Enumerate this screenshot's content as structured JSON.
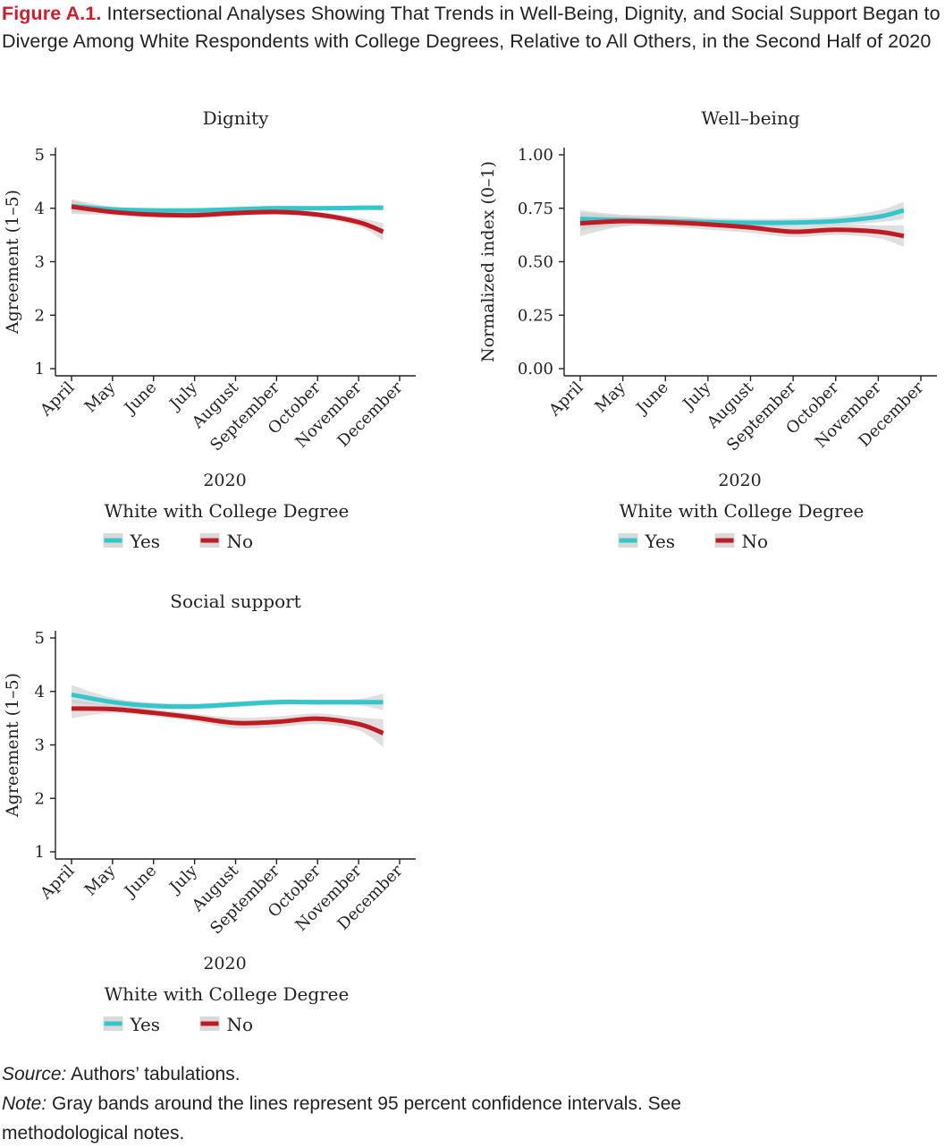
{
  "figure": {
    "label": "Figure A.1.",
    "title": "Intersectional Analyses Showing That Trends in Well-Being, Dignity, and Social Support Began to Diverge Among White Respondents with College Degrees, Relative to All Others, in the Second Half of 2020"
  },
  "source": {
    "label": "Source:",
    "text": "Authors’ tabulations."
  },
  "note": {
    "label": "Note:",
    "text": "Gray bands around the lines represent 95 percent confidence intervals. See methodological notes."
  },
  "colors": {
    "yes": "#35c6cc",
    "no": "#c01b22",
    "band": "#c9c9c9",
    "axis": "#231f20"
  },
  "chart_data": [
    {
      "id": "dignity",
      "type": "line",
      "title": "Dignity",
      "xlabel": "2020",
      "ylabel": "Agreement (1–5)",
      "categories": [
        "April",
        "May",
        "June",
        "July",
        "August",
        "September",
        "October",
        "November",
        "December"
      ],
      "ylim": [
        1,
        5
      ],
      "yticks": [
        1,
        2,
        3,
        4,
        5
      ],
      "ytick_labels": [
        "1",
        "2",
        "3",
        "4",
        "5"
      ],
      "grid": false,
      "legend": {
        "title": "White with College Degree",
        "position": "bottom",
        "items": [
          "Yes",
          "No"
        ]
      },
      "series": [
        {
          "name": "Yes",
          "color": "#35c6cc",
          "x": [
            0,
            1,
            2,
            3,
            4,
            5,
            6,
            7,
            7.6
          ],
          "values": [
            4.04,
            3.98,
            3.96,
            3.96,
            3.98,
            4.0,
            4.0,
            4.01,
            4.01
          ],
          "ci_lower": [
            3.92,
            3.93,
            3.92,
            3.92,
            3.94,
            3.96,
            3.96,
            3.97,
            3.96
          ],
          "ci_upper": [
            4.17,
            4.03,
            4.0,
            4.0,
            4.02,
            4.05,
            4.04,
            4.05,
            4.06
          ]
        },
        {
          "name": "No",
          "color": "#c01b22",
          "x": [
            0,
            1,
            2,
            3,
            4,
            5,
            6,
            7,
            7.6
          ],
          "values": [
            4.03,
            3.93,
            3.88,
            3.87,
            3.91,
            3.93,
            3.88,
            3.74,
            3.56
          ],
          "ci_lower": [
            3.89,
            3.87,
            3.83,
            3.82,
            3.86,
            3.88,
            3.83,
            3.66,
            3.4
          ],
          "ci_upper": [
            4.15,
            3.99,
            3.93,
            3.92,
            3.96,
            3.98,
            3.93,
            3.82,
            3.72
          ]
        }
      ]
    },
    {
      "id": "wellbeing",
      "type": "line",
      "title": "Well–being",
      "xlabel": "2020",
      "ylabel": "Normalized index (0–1)",
      "categories": [
        "April",
        "May",
        "June",
        "July",
        "August",
        "September",
        "October",
        "November",
        "December"
      ],
      "ylim": [
        0,
        1
      ],
      "yticks": [
        0,
        0.25,
        0.5,
        0.75,
        1
      ],
      "ytick_labels": [
        "0.00",
        "0.25",
        "0.50",
        "0.75",
        "1.00"
      ],
      "grid": false,
      "legend": {
        "title": "White with College Degree",
        "position": "bottom",
        "items": [
          "Yes",
          "No"
        ]
      },
      "series": [
        {
          "name": "Yes",
          "color": "#35c6cc",
          "x": [
            0,
            1,
            2,
            3,
            4,
            5,
            6,
            7,
            7.6
          ],
          "values": [
            0.7,
            0.695,
            0.69,
            0.685,
            0.682,
            0.683,
            0.69,
            0.71,
            0.74
          ],
          "ci_lower": [
            0.65,
            0.67,
            0.665,
            0.665,
            0.665,
            0.665,
            0.67,
            0.685,
            0.7
          ],
          "ci_upper": [
            0.74,
            0.72,
            0.715,
            0.705,
            0.7,
            0.702,
            0.71,
            0.74,
            0.78
          ]
        },
        {
          "name": "No",
          "color": "#c01b22",
          "x": [
            0,
            1,
            2,
            3,
            4,
            5,
            6,
            7,
            7.6
          ],
          "values": [
            0.68,
            0.69,
            0.685,
            0.675,
            0.66,
            0.64,
            0.65,
            0.64,
            0.62
          ],
          "ci_lower": [
            0.62,
            0.665,
            0.665,
            0.65,
            0.635,
            0.615,
            0.625,
            0.61,
            0.57
          ],
          "ci_upper": [
            0.73,
            0.715,
            0.71,
            0.7,
            0.685,
            0.665,
            0.675,
            0.67,
            0.67
          ]
        }
      ]
    },
    {
      "id": "social-support",
      "type": "line",
      "title": "Social support",
      "xlabel": "2020",
      "ylabel": "Agreement (1–5)",
      "categories": [
        "April",
        "May",
        "June",
        "July",
        "August",
        "September",
        "October",
        "November",
        "December"
      ],
      "ylim": [
        1,
        5
      ],
      "yticks": [
        1,
        2,
        3,
        4,
        5
      ],
      "ytick_labels": [
        "1",
        "2",
        "3",
        "4",
        "5"
      ],
      "grid": false,
      "legend": {
        "title": "White with College Degree",
        "position": "bottom",
        "items": [
          "Yes",
          "No"
        ]
      },
      "series": [
        {
          "name": "Yes",
          "color": "#35c6cc",
          "x": [
            0,
            1,
            2,
            3,
            4,
            5,
            6,
            7,
            7.6
          ],
          "values": [
            3.94,
            3.8,
            3.73,
            3.72,
            3.76,
            3.8,
            3.8,
            3.8,
            3.8
          ],
          "ci_lower": [
            3.78,
            3.72,
            3.67,
            3.67,
            3.71,
            3.75,
            3.75,
            3.74,
            3.65
          ],
          "ci_upper": [
            4.12,
            3.88,
            3.79,
            3.77,
            3.81,
            3.85,
            3.85,
            3.86,
            3.96
          ]
        },
        {
          "name": "No",
          "color": "#c01b22",
          "x": [
            0,
            1,
            2,
            3,
            4,
            5,
            6,
            7,
            7.6
          ],
          "values": [
            3.68,
            3.67,
            3.6,
            3.51,
            3.41,
            3.43,
            3.49,
            3.39,
            3.22
          ],
          "ci_lower": [
            3.5,
            3.6,
            3.53,
            3.44,
            3.31,
            3.33,
            3.39,
            3.27,
            2.96
          ],
          "ci_upper": [
            3.85,
            3.74,
            3.67,
            3.58,
            3.51,
            3.53,
            3.59,
            3.51,
            3.48
          ]
        }
      ]
    }
  ]
}
